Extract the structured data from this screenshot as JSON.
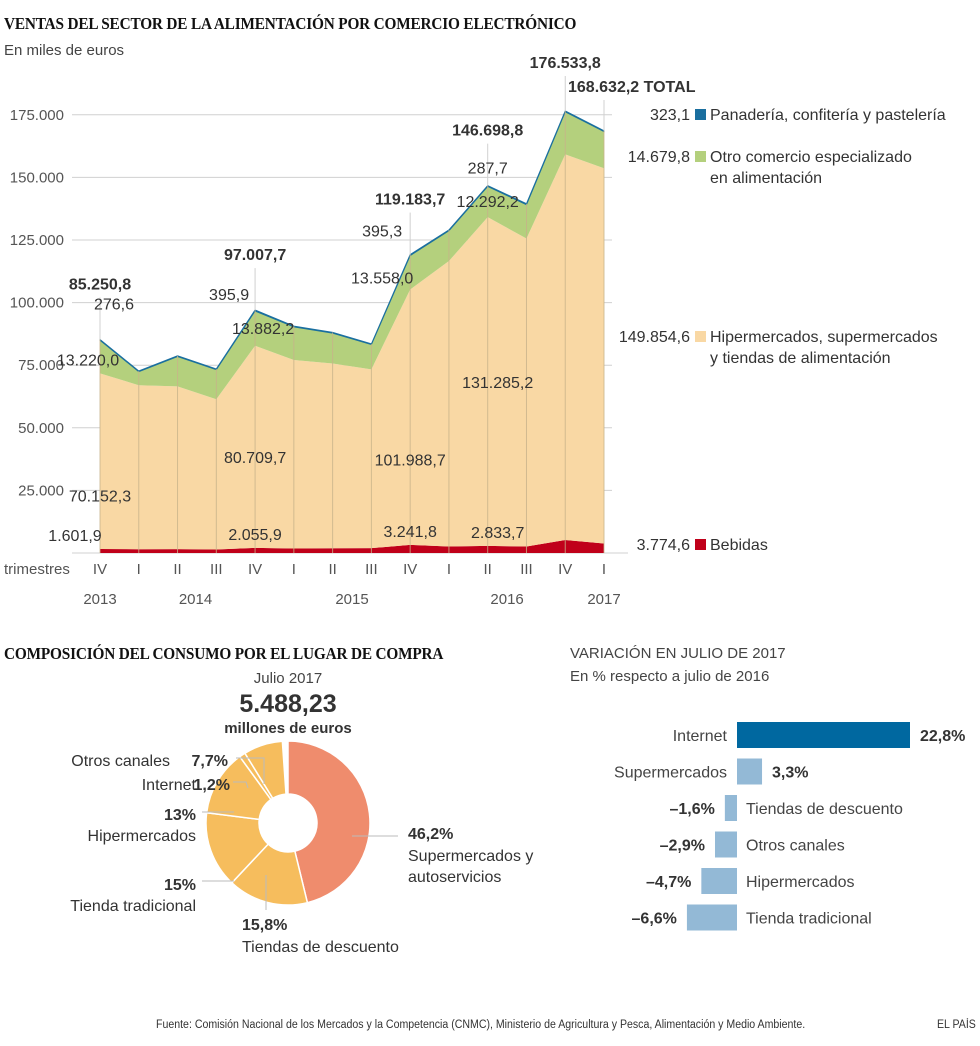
{
  "area_title": "VENTAS DEL SECTOR DE LA ALIMENTACIÓN POR COMERCIO ELECTRÓNICO",
  "area_subtitle": "En miles de euros",
  "donut_title": "COMPOSICIÓN DEL CONSUMO POR EL LUGAR DE COMPRA",
  "donut_header": {
    "period": "Julio 2017",
    "total": "5.488,23",
    "unit": "millones de euros"
  },
  "bar_title": "VARIACIÓN EN JULIO DE 2017",
  "bar_subtitle": "En % respecto a julio de 2016",
  "footer": {
    "source": "Fuente: Comisión Nacional de los Mercados y la Competencia (CNMC), Ministerio de Agricultura y Pesca, Alimentación y Medio Ambiente.",
    "brand": "EL PAÍS"
  },
  "colors": {
    "bebidas": "#c0001a",
    "hiper": "#f9d8a4",
    "otro": "#b4d07d",
    "panaderia": "#1a6f9f",
    "grid": "#d0d0d0",
    "quarter_line": "#c8b38a",
    "donut_super": "#ef8c6d",
    "donut_other": "#f6bd5d",
    "bar_internet": "#0068a0",
    "bar_other": "#93b9d6"
  },
  "chart_data": [
    {
      "type": "area",
      "stacked": true,
      "title": "VENTAS DEL SECTOR DE LA ALIMENTACIÓN POR COMERCIO ELECTRÓNICO",
      "subtitle": "En miles de euros",
      "xlabel": "trimestres",
      "ylabel": "",
      "ylim": [
        0,
        187500
      ],
      "yticks": [
        0,
        25000,
        50000,
        75000,
        100000,
        125000,
        150000,
        175000
      ],
      "ytick_labels": [
        "",
        "25.000",
        "50.000",
        "75.000",
        "100.000",
        "125.000",
        "150.000",
        "175.000"
      ],
      "grid": true,
      "categories": [
        "IV",
        "I",
        "II",
        "III",
        "IV",
        "I",
        "II",
        "III",
        "IV",
        "I",
        "II",
        "III",
        "IV",
        "I"
      ],
      "year_labels": [
        {
          "index": 0,
          "label": "2013"
        },
        {
          "index": 2,
          "label": "2014"
        },
        {
          "index": 6.5,
          "label": "2015"
        },
        {
          "index": 10.5,
          "label": "2016"
        },
        {
          "index": 13,
          "label": "2017"
        }
      ],
      "series": [
        {
          "key": "bebidas",
          "name": "Bebidas",
          "values": [
            1601.9,
            1500,
            1550,
            1400,
            2055.9,
            1800,
            1900,
            1950,
            3241.8,
            2600,
            2833.7,
            2600,
            5200,
            3774.6
          ]
        },
        {
          "key": "hiper",
          "name": "Hipermercados, supermercados y tiendas de alimentación",
          "values": [
            70152.3,
            65500,
            65000,
            60000,
            80709.7,
            75300,
            73800,
            71400,
            101988.7,
            114000,
            131285.2,
            123000,
            154000,
            149854.6
          ]
        },
        {
          "key": "otro",
          "name": "Otro comercio especializado en alimentación",
          "values": [
            13220.0,
            5400,
            11900,
            11800,
            13882.2,
            13200,
            12100,
            9900,
            13558.0,
            12100,
            12292.2,
            13500,
            17000,
            14679.8
          ]
        },
        {
          "key": "panaderia",
          "name": "Panadería, confitería y pastelería",
          "values": [
            276.6,
            300,
            300,
            300,
            395.9,
            300,
            300,
            250,
            395.3,
            300,
            287.7,
            400,
            333.8,
            323.1
          ]
        }
      ],
      "totals": [
        85250.8,
        72700,
        78750,
        73500,
        97007.7,
        90600,
        88100,
        83500,
        119183.7,
        129000,
        146698.8,
        139500,
        176533.8,
        168632.2
      ],
      "total_labels": [
        {
          "index": 0,
          "label": "85.250,8"
        },
        {
          "index": 4,
          "label": "97.007,7"
        },
        {
          "index": 8,
          "label": "119.183,7"
        },
        {
          "index": 10,
          "label": "146.698,8"
        },
        {
          "index": 12,
          "label": "176.533,8"
        },
        {
          "index": 13,
          "label": "168.632,2 TOTAL"
        }
      ],
      "value_labels": [
        {
          "series": "panaderia",
          "index": 0,
          "label": "276,6"
        },
        {
          "series": "otro",
          "index": 0,
          "label": "13.220,0"
        },
        {
          "series": "hiper",
          "index": 0,
          "label": "70.152,3"
        },
        {
          "series": "bebidas",
          "index": 0,
          "label": "1.601,9"
        },
        {
          "series": "panaderia",
          "index": 4,
          "label": "395,9"
        },
        {
          "series": "otro",
          "index": 4,
          "label": "13.882,2"
        },
        {
          "series": "hiper",
          "index": 4,
          "label": "80.709,7"
        },
        {
          "series": "bebidas",
          "index": 4,
          "label": "2.055,9"
        },
        {
          "series": "panaderia",
          "index": 8,
          "label": "395,3"
        },
        {
          "series": "otro",
          "index": 8,
          "label": "13.558,0"
        },
        {
          "series": "hiper",
          "index": 8,
          "label": "101.988,7"
        },
        {
          "series": "bebidas",
          "index": 8,
          "label": "3.241,8"
        },
        {
          "series": "panaderia",
          "index": 10,
          "label": "287,7"
        },
        {
          "series": "otro",
          "index": 10,
          "label": "12.292,2"
        },
        {
          "series": "hiper",
          "index": 10,
          "label": "131.285,2"
        },
        {
          "series": "bebidas",
          "index": 10,
          "label": "2.833,7"
        }
      ],
      "legend": [
        {
          "key": "panaderia",
          "value": "323,1",
          "lines": [
            "Panadería, confitería y pastelería"
          ]
        },
        {
          "key": "otro",
          "value": "14.679,8",
          "lines": [
            "Otro comercio especializado",
            "en alimentación"
          ]
        },
        {
          "key": "hiper",
          "value": "149.854,6",
          "lines": [
            "Hipermercados, supermercados",
            "y tiendas de alimentación"
          ]
        },
        {
          "key": "bebidas",
          "value": "3.774,6",
          "lines": [
            "Bebidas"
          ]
        }
      ],
      "legend_placement": "right"
    },
    {
      "type": "pie",
      "donut": true,
      "title": "COMPOSICIÓN DEL CONSUMO POR EL LUGAR DE COMPRA",
      "subtitle": "Julio 2017",
      "total": "5.488,23 millones de euros",
      "slices": [
        {
          "name": "Supermercados y autoservicios",
          "value": 46.2,
          "label": "46,2%",
          "color_key": "donut_super"
        },
        {
          "name": "Tiendas de descuento",
          "value": 15.8,
          "label": "15,8%",
          "color_key": "donut_other"
        },
        {
          "name": "Tienda tradicional",
          "value": 15,
          "label": "15%",
          "color_key": "donut_other"
        },
        {
          "name": "Hipermercados",
          "value": 13,
          "label": "13%",
          "color_key": "donut_other"
        },
        {
          "name": "Internet",
          "value": 1.2,
          "label": "1,2%",
          "color_key": "donut_other"
        },
        {
          "name": "Otros canales",
          "value": 7.7,
          "label": "7,7%",
          "color_key": "donut_other"
        }
      ]
    },
    {
      "type": "bar",
      "orientation": "horizontal",
      "title": "VARIACIÓN EN JULIO DE 2017",
      "subtitle": "En % respecto a julio de 2016",
      "categories": [
        "Internet",
        "Supermercados",
        "Tiendas de descuento",
        "Otros canales",
        "Hipermercados",
        "Tienda tradicional"
      ],
      "values": [
        22.8,
        3.3,
        -1.6,
        -2.9,
        -4.7,
        -6.6
      ],
      "labels": [
        "22,8%",
        "3,3%",
        "–1,6%",
        "–2,9%",
        "–4,7%",
        "–6,6%"
      ],
      "highlight": "Internet"
    }
  ]
}
